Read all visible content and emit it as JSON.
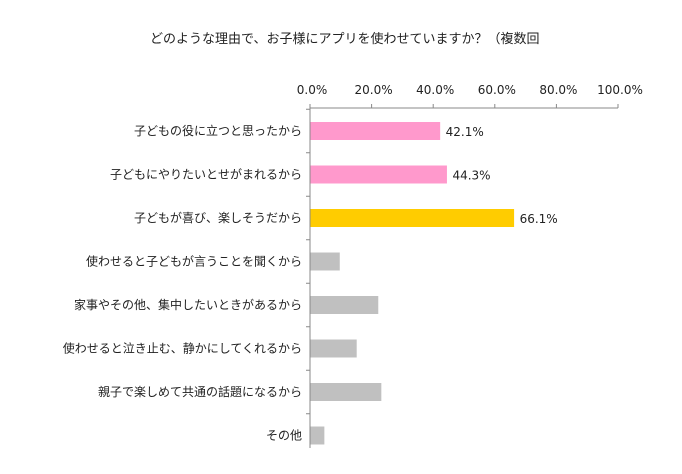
{
  "chart_data": {
    "type": "bar",
    "orientation": "horizontal",
    "title": "どのような理由で、お子様にアプリを使わせていますか？（複数回",
    "xlim": [
      0,
      100
    ],
    "x_ticks": [
      "0.0%",
      "20.0%",
      "40.0%",
      "60.0%",
      "80.0%",
      "100.0%"
    ],
    "grid": false,
    "categories": [
      "子どもの役に立つと思ったから",
      "子どもにやりたいとせがまれるから",
      "子どもが喜び、楽しそうだから",
      "使わせると子どもが言うことを聞くから",
      "家事やその他、集中したいときがあるから",
      "使わせると泣き止む、静かにしてくれるから",
      "親子で楽しめて共通の話題になるから",
      "その他"
    ],
    "values": [
      42.1,
      44.3,
      66.1,
      9.5,
      22.0,
      15.0,
      23.0,
      4.5
    ],
    "data_labels": [
      "42.1%",
      "44.3%",
      "66.1%",
      "",
      "",
      "",
      "",
      ""
    ],
    "colors": [
      "#ff99cc",
      "#ff99cc",
      "#ffcc00",
      "#c0c0c0",
      "#c0c0c0",
      "#c0c0c0",
      "#c0c0c0",
      "#c0c0c0"
    ]
  }
}
